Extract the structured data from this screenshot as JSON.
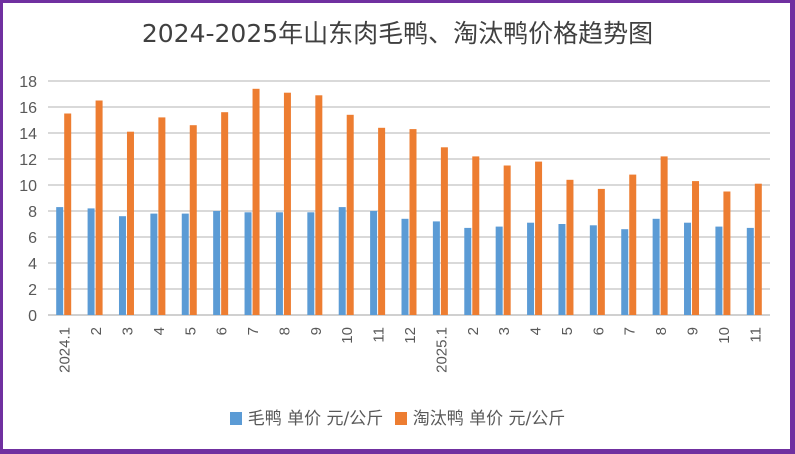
{
  "chart_data": {
    "type": "bar",
    "title": "2024-2025年山东肉毛鸭、淘汰鸭价格趋势图",
    "xlabel": "",
    "ylabel": "",
    "ylim": [
      0,
      18
    ],
    "yticks": [
      "0",
      "2",
      "4",
      "6",
      "8",
      "10",
      "12",
      "14",
      "16",
      "18"
    ],
    "grid": true,
    "legend_position": "bottom",
    "categories": [
      "2024.1",
      "2",
      "3",
      "4",
      "5",
      "6",
      "7",
      "8",
      "9",
      "10",
      "11",
      "12",
      "2025.1",
      "2",
      "3",
      "4",
      "5",
      "6",
      "7",
      "8",
      "9",
      "10",
      "11"
    ],
    "series": [
      {
        "name": "毛鸭 单价 元/公斤",
        "color": "#5b9bd5",
        "values": [
          8.3,
          8.2,
          7.6,
          7.8,
          7.8,
          8.0,
          7.9,
          7.9,
          7.9,
          8.3,
          8.0,
          7.4,
          7.2,
          6.7,
          6.8,
          7.1,
          7.0,
          6.9,
          6.6,
          7.4,
          7.1,
          6.8,
          6.7
        ]
      },
      {
        "name": "淘汰鸭 单价 元/公斤",
        "color": "#ed7d31",
        "values": [
          15.5,
          16.5,
          14.1,
          15.2,
          14.6,
          15.6,
          17.4,
          17.1,
          16.9,
          15.4,
          14.4,
          14.3,
          12.9,
          12.2,
          11.5,
          11.8,
          10.4,
          9.7,
          10.8,
          12.2,
          10.3,
          9.5,
          10.1
        ]
      }
    ]
  },
  "colors": {
    "frame": "#7030a0",
    "grid": "#d9d9d9",
    "text": "#595959"
  }
}
